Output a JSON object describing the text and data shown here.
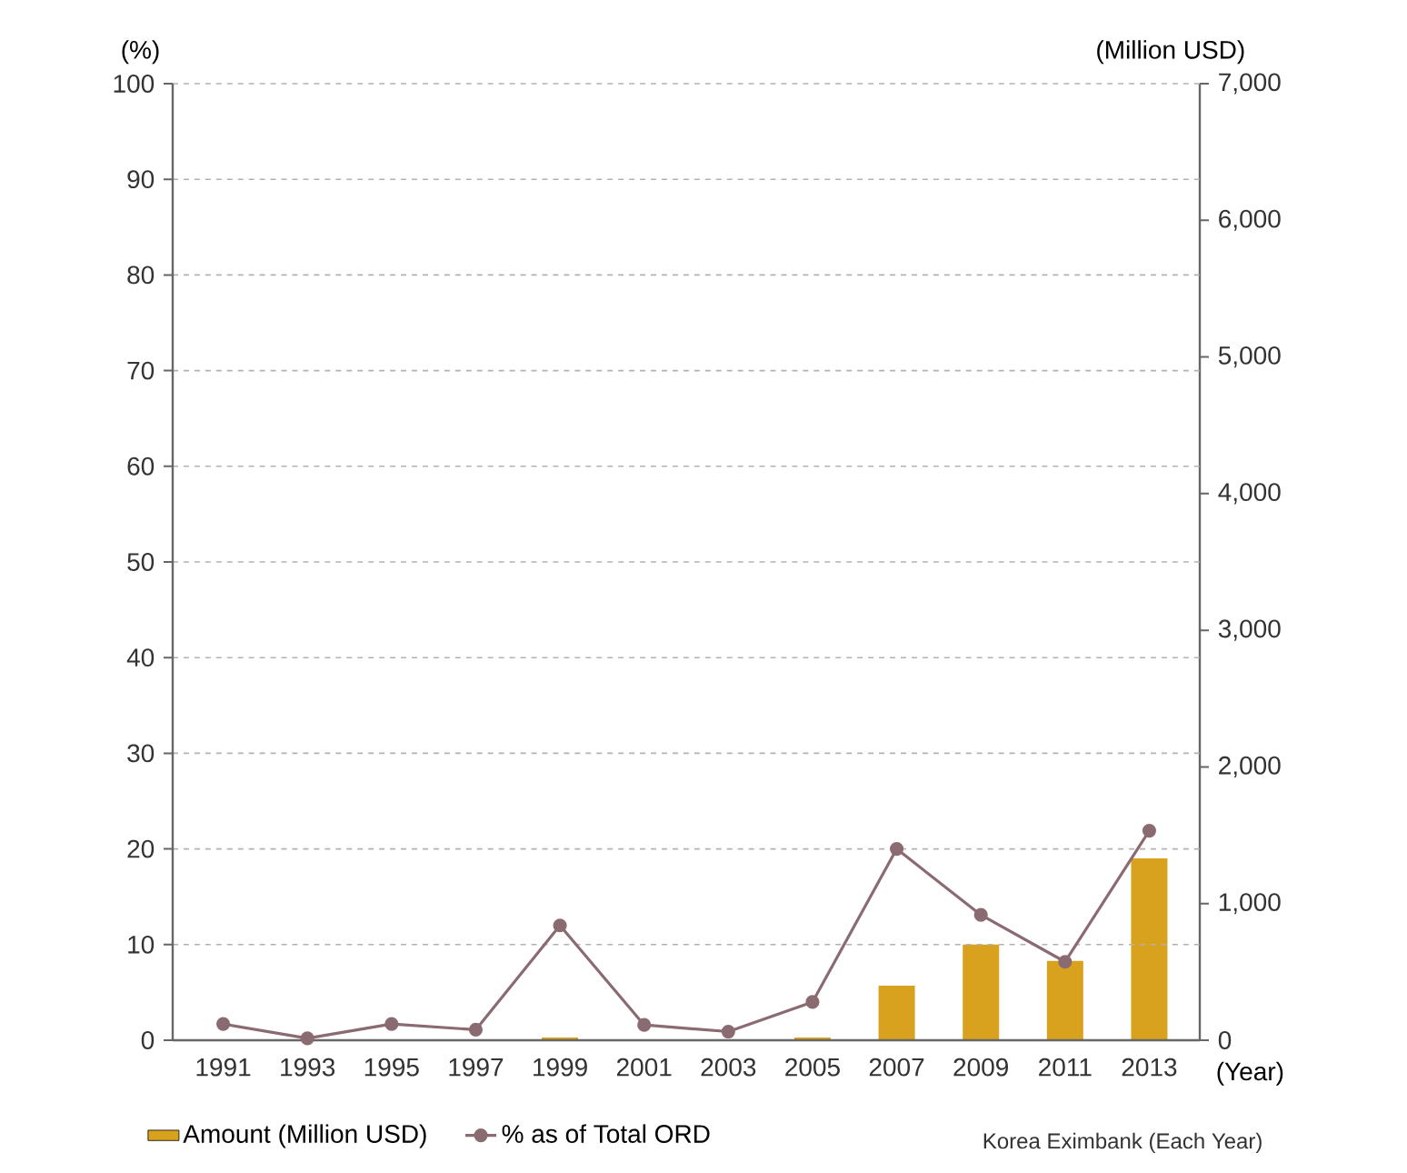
{
  "chart_data": {
    "type": "bar",
    "categories": [
      "1991",
      "1993",
      "1995",
      "1997",
      "1999",
      "2001",
      "2003",
      "2005",
      "2007",
      "2009",
      "2011",
      "2013"
    ],
    "series": [
      {
        "name": "Amount (Million USD)",
        "axis": "y2",
        "color": "#d9a21e",
        "values": [
          0,
          0,
          0,
          0,
          20,
          0,
          0,
          20,
          400,
          700,
          580,
          1330
        ]
      },
      {
        "name": "% as of Total ORD",
        "type": "line",
        "color": "#8b6b72",
        "marker": "circle",
        "values": [
          1.7,
          0.2,
          1.7,
          1.1,
          12,
          1.6,
          0.9,
          4,
          20,
          13.1,
          8.2,
          21.9
        ]
      }
    ],
    "xlabel": "(Year)",
    "ylabel": "(%)",
    "y2label": "(Million USD)",
    "ylim": [
      0,
      100
    ],
    "yticks": [
      0,
      10,
      20,
      30,
      40,
      50,
      60,
      70,
      80,
      90,
      100
    ],
    "y2lim": [
      0,
      7000
    ],
    "y2ticks": [
      0,
      {
        "value": 1000,
        "label": "1,000"
      },
      {
        "value": 2000,
        "label": "2,000"
      },
      {
        "value": 3000,
        "label": "3,000"
      },
      {
        "value": 4000,
        "label": "4,000"
      },
      {
        "value": 5000,
        "label": "5,000"
      },
      {
        "value": 6000,
        "label": "6,000"
      },
      {
        "value": 7000,
        "label": "7,000"
      }
    ],
    "grid": "y",
    "legend": "bottom",
    "annotations": [
      "Korea Eximbank (Each Year)"
    ]
  }
}
